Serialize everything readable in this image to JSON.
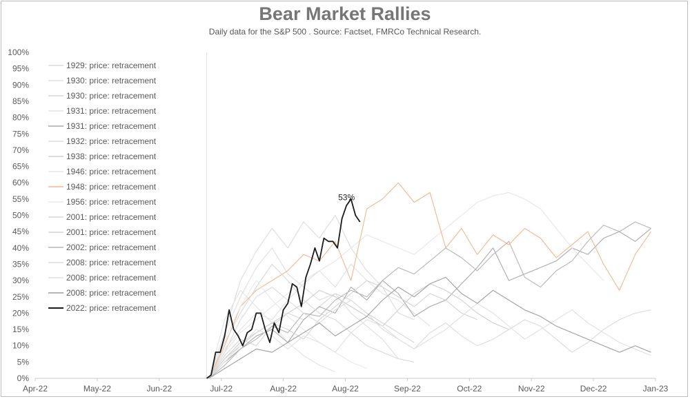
{
  "chart_data": {
    "type": "line",
    "title": "Bear Market Rallies",
    "subtitle": "Daily data for the S&P 500 .  Source: Factset, FMRCo Technical Research.",
    "xlabel": "",
    "ylabel": "",
    "x_ticks": [
      "Apr-22",
      "May-22",
      "Jun-22",
      "Jul-22",
      "Aug-22",
      "Aug-22",
      "Sep-22",
      "Oct-22",
      "Nov-22",
      "Dec-22",
      "Jan-23"
    ],
    "y_ticks": [
      "0%",
      "5%",
      "10%",
      "15%",
      "20%",
      "25%",
      "30%",
      "35%",
      "40%",
      "45%",
      "50%",
      "55%",
      "60%",
      "65%",
      "70%",
      "75%",
      "80%",
      "85%",
      "90%",
      "95%",
      "100%"
    ],
    "ylim": [
      0,
      100
    ],
    "xlim": [
      "2022-04-01",
      "2023-01-01"
    ],
    "grid": false,
    "legend_position": "top-left",
    "annotation": {
      "text": "53%",
      "x": "2022-08-17",
      "y": 53
    },
    "series": [
      {
        "name": "1929: price: retracement",
        "color": "#dcdcdc",
        "x": [
          "2022-06-17",
          "2022-06-24",
          "2022-07-01",
          "2022-07-08",
          "2022-07-15",
          "2022-07-22",
          "2022-07-29",
          "2022-08-05",
          "2022-08-12",
          "2022-08-19",
          "2022-08-26",
          "2022-09-02",
          "2022-09-09",
          "2022-09-16"
        ],
        "y": [
          0,
          14,
          30,
          39,
          46,
          40,
          48,
          43,
          50,
          40,
          33,
          28,
          20,
          18
        ]
      },
      {
        "name": "1930: price: retracement",
        "color": "#e0e0e0",
        "x": [
          "2022-06-17",
          "2022-06-24",
          "2022-07-01",
          "2022-07-08",
          "2022-07-15",
          "2022-07-22",
          "2022-07-29",
          "2022-08-05",
          "2022-08-12",
          "2022-08-19",
          "2022-08-26",
          "2022-09-02",
          "2022-09-09",
          "2022-09-16",
          "2022-09-23"
        ],
        "y": [
          0,
          9,
          15,
          20,
          18,
          24,
          29,
          33,
          28,
          35,
          30,
          26,
          24,
          20,
          16
        ]
      },
      {
        "name": "1930: price: retracement",
        "color": "#d6d6d6",
        "x": [
          "2022-06-17",
          "2022-06-24",
          "2022-07-01",
          "2022-07-08",
          "2022-07-15",
          "2022-07-22",
          "2022-07-29",
          "2022-08-05",
          "2022-08-12",
          "2022-08-19",
          "2022-08-26",
          "2022-09-02",
          "2022-09-09",
          "2022-09-16"
        ],
        "y": [
          0,
          7,
          12,
          10,
          16,
          20,
          18,
          22,
          26,
          24,
          20,
          17,
          14,
          11
        ]
      },
      {
        "name": "1931: price: retracement",
        "color": "#e3e3e3",
        "x": [
          "2022-06-17",
          "2022-06-24",
          "2022-07-01",
          "2022-07-08",
          "2022-07-15",
          "2022-07-22",
          "2022-07-29",
          "2022-08-05",
          "2022-08-12"
        ],
        "y": [
          0,
          18,
          27,
          22,
          17,
          11,
          7,
          4,
          2
        ]
      },
      {
        "name": "1931: price: retracement",
        "color": "#a9a9a9",
        "x": [
          "2022-06-17",
          "2022-06-24",
          "2022-07-01",
          "2022-07-08",
          "2022-07-15",
          "2022-07-22",
          "2022-07-29",
          "2022-08-05",
          "2022-08-12",
          "2022-08-19",
          "2022-08-26",
          "2022-09-02",
          "2022-09-09",
          "2022-09-16",
          "2022-09-23",
          "2022-09-30",
          "2022-10-07",
          "2022-10-14",
          "2022-10-21",
          "2022-10-28",
          "2022-11-04",
          "2022-11-11",
          "2022-11-18",
          "2022-11-25",
          "2022-12-02",
          "2022-12-09",
          "2022-12-16",
          "2022-12-23",
          "2022-12-30"
        ],
        "y": [
          0,
          5,
          9,
          13,
          15,
          11,
          18,
          22,
          20,
          28,
          24,
          30,
          26,
          19,
          22,
          24,
          29,
          34,
          40,
          30,
          32,
          34,
          36,
          40,
          38,
          43,
          45,
          42,
          46
        ]
      },
      {
        "name": "1932: price: retracement",
        "color": "#dedede",
        "x": [
          "2022-06-17",
          "2022-06-24",
          "2022-07-01",
          "2022-07-08",
          "2022-07-15",
          "2022-07-22",
          "2022-07-29",
          "2022-08-05",
          "2022-08-12",
          "2022-08-19",
          "2022-08-26",
          "2022-09-02",
          "2022-09-09"
        ],
        "y": [
          0,
          14,
          25,
          34,
          40,
          32,
          28,
          24,
          26,
          20,
          16,
          12,
          6
        ]
      },
      {
        "name": "1938: price: retracement",
        "color": "#cfcfcf",
        "x": [
          "2022-06-17",
          "2022-06-24",
          "2022-07-01",
          "2022-07-08",
          "2022-07-15",
          "2022-07-22",
          "2022-07-29",
          "2022-08-05",
          "2022-08-12",
          "2022-08-19",
          "2022-08-26",
          "2022-09-02",
          "2022-09-09",
          "2022-09-16",
          "2022-09-23",
          "2022-09-30",
          "2022-10-07",
          "2022-10-14",
          "2022-10-21",
          "2022-10-28"
        ],
        "y": [
          0,
          6,
          11,
          14,
          17,
          20,
          23,
          27,
          25,
          22,
          19,
          16,
          21,
          26,
          29,
          27,
          24,
          20,
          17,
          15
        ]
      },
      {
        "name": "1946: price: retracement",
        "color": "#e6e6e6",
        "x": [
          "2022-06-17",
          "2022-06-24",
          "2022-07-01",
          "2022-07-08",
          "2022-07-15",
          "2022-07-22",
          "2022-07-29",
          "2022-08-05",
          "2022-08-12",
          "2022-08-19",
          "2022-08-26",
          "2022-09-02",
          "2022-09-09",
          "2022-09-16",
          "2022-09-23",
          "2022-09-30",
          "2022-10-07",
          "2022-10-14",
          "2022-10-21",
          "2022-10-28",
          "2022-11-04",
          "2022-11-11",
          "2022-11-18",
          "2022-11-25",
          "2022-12-02",
          "2022-12-09"
        ],
        "y": [
          0,
          8,
          14,
          18,
          22,
          26,
          30,
          33,
          36,
          40,
          44,
          42,
          40,
          38,
          42,
          46,
          50,
          54,
          56,
          57,
          55,
          52,
          46,
          40,
          35,
          30
        ]
      },
      {
        "name": "1948: price: retracement",
        "color": "#f2b790",
        "x": [
          "2022-06-17",
          "2022-06-24",
          "2022-07-01",
          "2022-07-08",
          "2022-07-15",
          "2022-07-22",
          "2022-07-29",
          "2022-08-05",
          "2022-08-12",
          "2022-08-19",
          "2022-08-26",
          "2022-09-02",
          "2022-09-09",
          "2022-09-16",
          "2022-09-23",
          "2022-09-30",
          "2022-10-07",
          "2022-10-14",
          "2022-10-21",
          "2022-10-28",
          "2022-11-04",
          "2022-11-11",
          "2022-11-18",
          "2022-11-25",
          "2022-12-02",
          "2022-12-09",
          "2022-12-16",
          "2022-12-23",
          "2022-12-30"
        ],
        "y": [
          0,
          10,
          22,
          27,
          30,
          33,
          38,
          36,
          42,
          30,
          52,
          55,
          60,
          54,
          57,
          40,
          46,
          38,
          44,
          41,
          46,
          43,
          37,
          41,
          45,
          35,
          27,
          38,
          45
        ]
      },
      {
        "name": "1956: price: retracement",
        "color": "#e8e8e8",
        "x": [
          "2022-06-17",
          "2022-06-24",
          "2022-07-01",
          "2022-07-08",
          "2022-07-15",
          "2022-07-22",
          "2022-07-29",
          "2022-08-05",
          "2022-08-12",
          "2022-08-19",
          "2022-08-26"
        ],
        "y": [
          0,
          12,
          22,
          30,
          24,
          19,
          15,
          11,
          8,
          5,
          3
        ]
      },
      {
        "name": "2001: price: retracement",
        "color": "#d9d9d9",
        "x": [
          "2022-06-17",
          "2022-06-24",
          "2022-07-01",
          "2022-07-08",
          "2022-07-15",
          "2022-07-22",
          "2022-07-29",
          "2022-08-05",
          "2022-08-12",
          "2022-08-19",
          "2022-08-26",
          "2022-09-02",
          "2022-09-09",
          "2022-09-16"
        ],
        "y": [
          0,
          11,
          20,
          28,
          35,
          30,
          24,
          20,
          18,
          14,
          10,
          8,
          6,
          5
        ]
      },
      {
        "name": "2001: price: retracement",
        "color": "#d3d3d3",
        "x": [
          "2022-06-17",
          "2022-06-24",
          "2022-07-01",
          "2022-07-08",
          "2022-07-15",
          "2022-07-22",
          "2022-07-29",
          "2022-08-05",
          "2022-08-12",
          "2022-08-19",
          "2022-08-26",
          "2022-09-02",
          "2022-09-09",
          "2022-09-16",
          "2022-09-23",
          "2022-09-30",
          "2022-10-07",
          "2022-10-14"
        ],
        "y": [
          0,
          6,
          10,
          14,
          17,
          15,
          12,
          18,
          22,
          26,
          30,
          28,
          25,
          22,
          26,
          24,
          20,
          18
        ]
      },
      {
        "name": "2002: price: retracement",
        "color": "#b5b5b5",
        "x": [
          "2022-06-17",
          "2022-06-24",
          "2022-07-01",
          "2022-07-08",
          "2022-07-15",
          "2022-07-22",
          "2022-07-29",
          "2022-08-05",
          "2022-08-12",
          "2022-08-19",
          "2022-08-26",
          "2022-09-02",
          "2022-09-09",
          "2022-09-16",
          "2022-09-23",
          "2022-09-30",
          "2022-10-07",
          "2022-10-14",
          "2022-10-21",
          "2022-10-28",
          "2022-11-04",
          "2022-11-11",
          "2022-11-18",
          "2022-11-25",
          "2022-12-02",
          "2022-12-09",
          "2022-12-16",
          "2022-12-23",
          "2022-12-30"
        ],
        "y": [
          0,
          4,
          9,
          12,
          16,
          14,
          20,
          19,
          24,
          27,
          25,
          30,
          34,
          32,
          36,
          40,
          37,
          33,
          38,
          42,
          31,
          28,
          33,
          36,
          42,
          47,
          45,
          48,
          46
        ]
      },
      {
        "name": "2008: price: retracement",
        "color": "#dbdbdb",
        "x": [
          "2022-06-17",
          "2022-06-24",
          "2022-07-01",
          "2022-07-08",
          "2022-07-15",
          "2022-07-22",
          "2022-07-29",
          "2022-08-05",
          "2022-08-12",
          "2022-08-19",
          "2022-08-26",
          "2022-09-02",
          "2022-09-09",
          "2022-09-16",
          "2022-09-23",
          "2022-09-30",
          "2022-10-07",
          "2022-10-14",
          "2022-10-21",
          "2022-10-28",
          "2022-11-04",
          "2022-11-11",
          "2022-11-18",
          "2022-11-25",
          "2022-12-02",
          "2022-12-09",
          "2022-12-16",
          "2022-12-23",
          "2022-12-30"
        ],
        "y": [
          0,
          8,
          18,
          25,
          28,
          24,
          20,
          17,
          21,
          24,
          20,
          15,
          12,
          9,
          14,
          17,
          13,
          10,
          12,
          15,
          18,
          16,
          12,
          8,
          11,
          15,
          18,
          20,
          21
        ]
      },
      {
        "name": "2008: price: retracement",
        "color": "#e0e0e0",
        "x": [
          "2022-06-17",
          "2022-06-24",
          "2022-07-01",
          "2022-07-08",
          "2022-07-15",
          "2022-07-22",
          "2022-07-29",
          "2022-08-05",
          "2022-08-12",
          "2022-08-19",
          "2022-08-26",
          "2022-09-02",
          "2022-09-09",
          "2022-09-16",
          "2022-09-23",
          "2022-09-30",
          "2022-10-07",
          "2022-10-14",
          "2022-10-21",
          "2022-10-28",
          "2022-11-04",
          "2022-11-11",
          "2022-11-18",
          "2022-11-25",
          "2022-12-02",
          "2022-12-09",
          "2022-12-16",
          "2022-12-23",
          "2022-12-30"
        ],
        "y": [
          0,
          5,
          10,
          15,
          13,
          9,
          13,
          11,
          8,
          14,
          18,
          16,
          12,
          9,
          12,
          15,
          19,
          23,
          20,
          16,
          12,
          15,
          18,
          21,
          17,
          14,
          11,
          9,
          7
        ]
      },
      {
        "name": "2008: price: retracement",
        "color": "#9e9e9e",
        "x": [
          "2022-06-17",
          "2022-06-24",
          "2022-07-01",
          "2022-07-08",
          "2022-07-15",
          "2022-07-22",
          "2022-07-29",
          "2022-08-05",
          "2022-08-12",
          "2022-08-19",
          "2022-08-26",
          "2022-09-02",
          "2022-09-09",
          "2022-09-16",
          "2022-09-23",
          "2022-09-30",
          "2022-10-07",
          "2022-10-14",
          "2022-10-21",
          "2022-10-28",
          "2022-11-04",
          "2022-11-11",
          "2022-11-18",
          "2022-11-25",
          "2022-12-02",
          "2022-12-09",
          "2022-12-16",
          "2022-12-23",
          "2022-12-30"
        ],
        "y": [
          0,
          3,
          6,
          9,
          8,
          11,
          14,
          17,
          13,
          16,
          19,
          24,
          28,
          25,
          29,
          31,
          26,
          23,
          27,
          24,
          21,
          19,
          16,
          14,
          12,
          10,
          8,
          10,
          8
        ]
      },
      {
        "name": "2022: price: retracement",
        "color": "#1a1a1a",
        "x": [
          "2022-06-16",
          "2022-06-18",
          "2022-06-20",
          "2022-06-22",
          "2022-06-24",
          "2022-06-26",
          "2022-06-28",
          "2022-06-30",
          "2022-07-02",
          "2022-07-04",
          "2022-07-06",
          "2022-07-08",
          "2022-07-10",
          "2022-07-12",
          "2022-07-14",
          "2022-07-16",
          "2022-07-18",
          "2022-07-20",
          "2022-07-22",
          "2022-07-24",
          "2022-07-26",
          "2022-07-28",
          "2022-07-30",
          "2022-08-01",
          "2022-08-03",
          "2022-08-05",
          "2022-08-07",
          "2022-08-09",
          "2022-08-11",
          "2022-08-13",
          "2022-08-15",
          "2022-08-17",
          "2022-08-19",
          "2022-08-21",
          "2022-08-23"
        ],
        "y": [
          0,
          1,
          8,
          8,
          13,
          21,
          15,
          13,
          10,
          14,
          15,
          20,
          20,
          15,
          11,
          17,
          14,
          21,
          23,
          29,
          28,
          22,
          31,
          35,
          40,
          36,
          43,
          42,
          42,
          40,
          49,
          53,
          55,
          50,
          48
        ]
      }
    ]
  }
}
